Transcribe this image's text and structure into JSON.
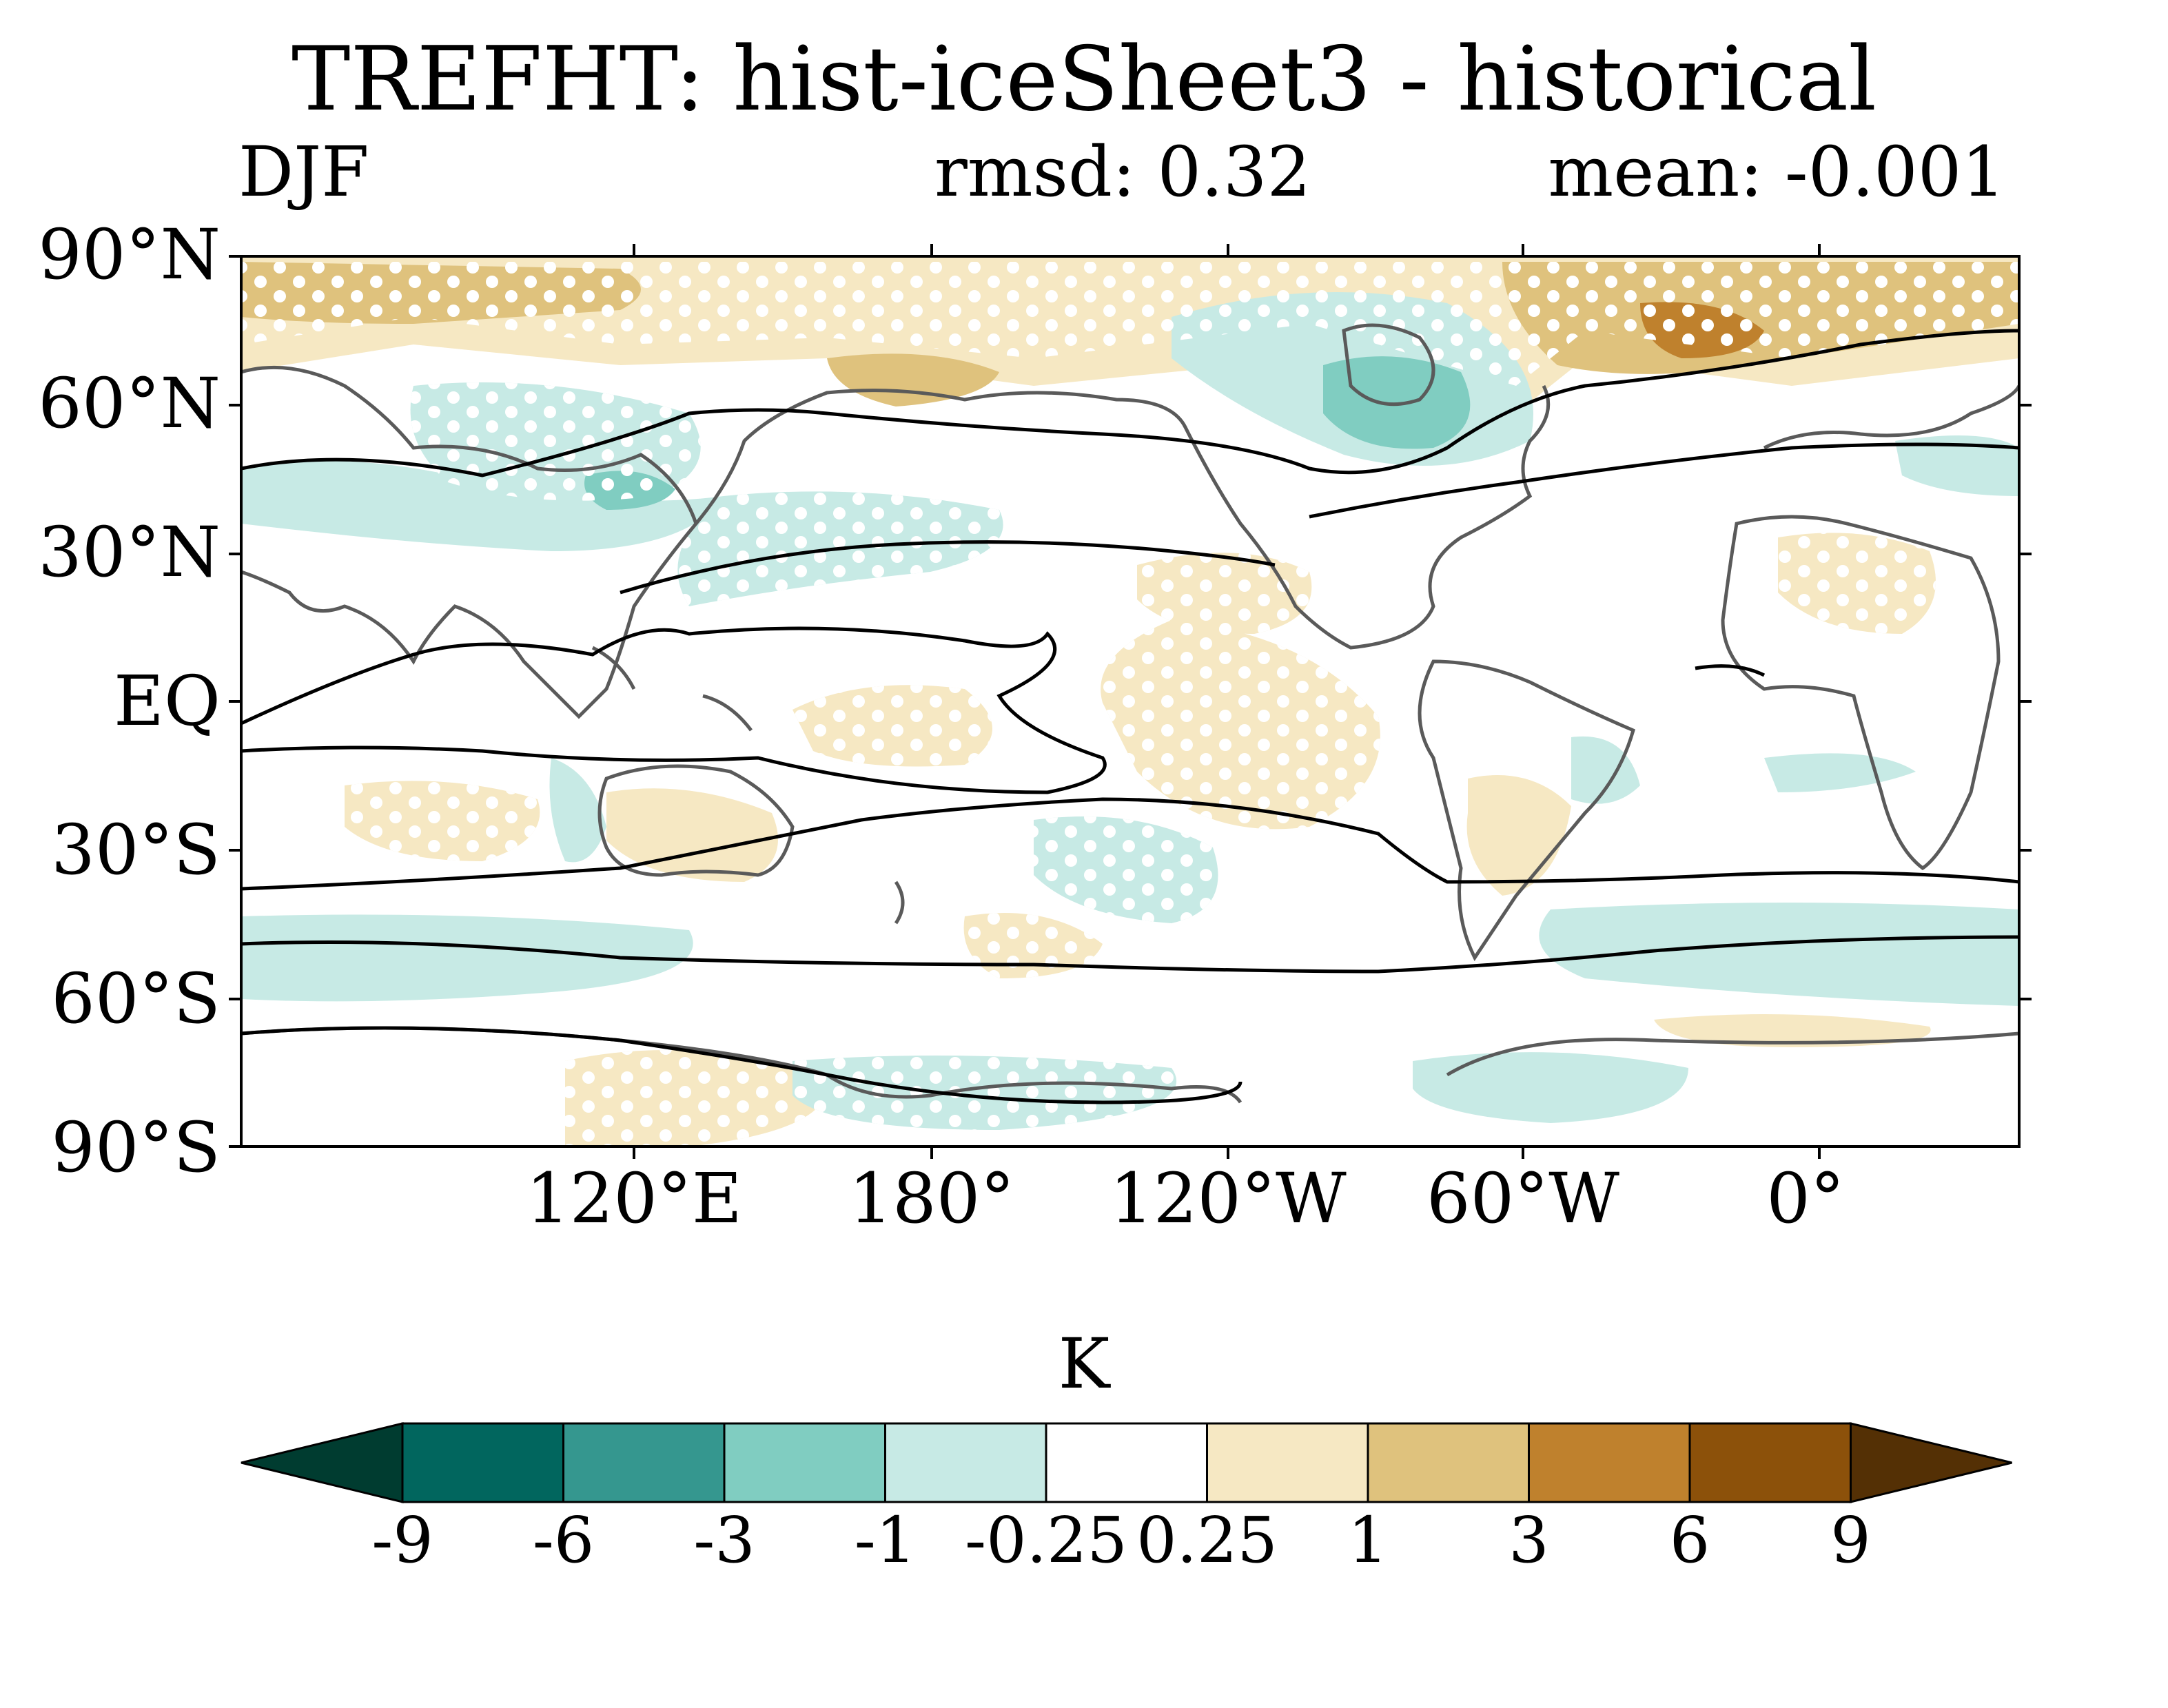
{
  "title": "TREFHT: hist-iceSheet3 - historical",
  "season": "DJF",
  "rmsd": "rmsd: 0.32",
  "mean": "mean: -0.001",
  "lat_labels": [
    "90°N",
    "60°N",
    "30°N",
    "EQ",
    "30°S",
    "60°S",
    "90°S"
  ],
  "lon_labels": [
    "120°E",
    "180°",
    "120°W",
    "60°W",
    "0°"
  ],
  "units": "K",
  "colorbar": {
    "levels": [
      "-9",
      "-6",
      "-3",
      "-1",
      "-0.25",
      "0.25",
      "1",
      "3",
      "6",
      "9"
    ],
    "colors": [
      "#003c30",
      "#01665e",
      "#35978f",
      "#80cdc1",
      "#c7eae5",
      "#ffffff",
      "#f6e8c3",
      "#dfc27d",
      "#bf812d",
      "#8c510a",
      "#543005"
    ]
  },
  "colors": {
    "land_outline": "#5a5a5a",
    "contour": "#000000",
    "stipple": "#ffffff"
  }
}
